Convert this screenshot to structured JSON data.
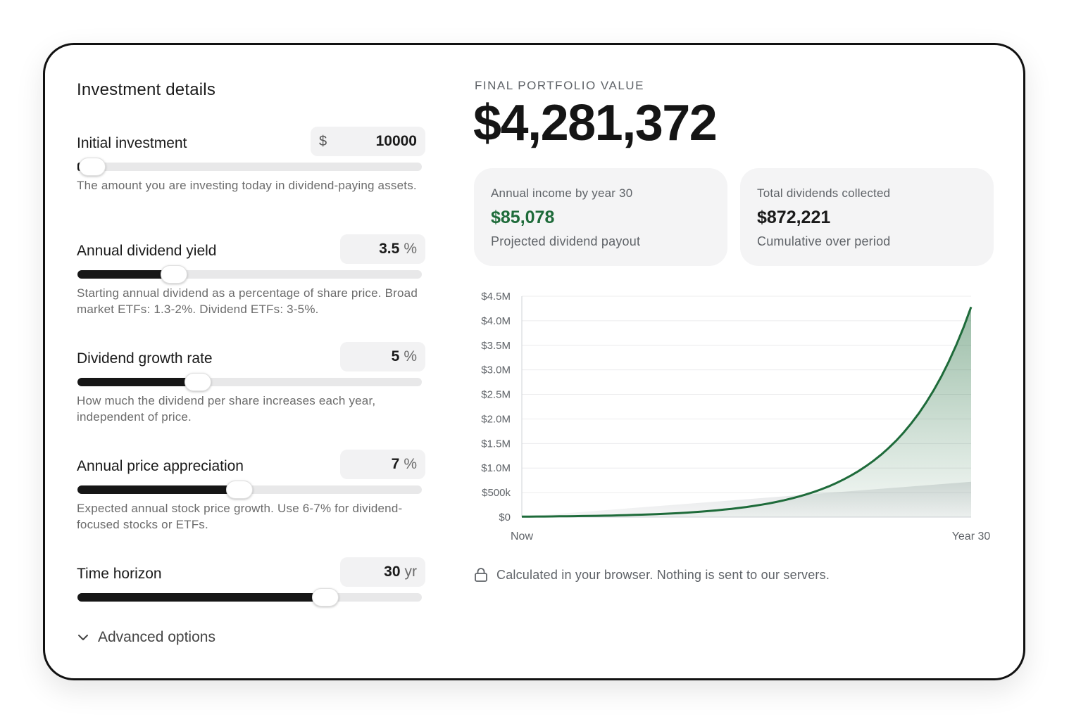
{
  "inputs": {
    "title": "Investment details",
    "fields": [
      {
        "label": "Initial investment",
        "prefix": "$",
        "value": "10000",
        "unit": "",
        "level": 0.0,
        "help": "The amount you are investing today in dividend-paying assets."
      },
      {
        "label": "Annual dividend yield",
        "prefix": "",
        "value": "3.5",
        "unit": "%",
        "level": 0.28,
        "help": "Starting annual dividend as a percentage of share price. Broad market ETFs: 1.3-2%. Dividend ETFs: 3-5%."
      },
      {
        "label": "Dividend growth rate",
        "prefix": "",
        "value": "5",
        "unit": "%",
        "level": 0.35,
        "help": "How much the dividend per share increases each year, independent of price."
      },
      {
        "label": "Annual price appreciation",
        "prefix": "",
        "value": "7",
        "unit": "%",
        "level": 0.47,
        "help": "Expected annual stock price growth. Use 6-7% for dividend-focused stocks or ETFs."
      },
      {
        "label": "Time horizon",
        "prefix": "",
        "value": "30",
        "unit": "yr",
        "level": 0.72,
        "help": ""
      }
    ],
    "advanced_label": "Advanced options"
  },
  "results": {
    "final_label": "FINAL PORTFOLIO VALUE",
    "final_value": "$4,281,372",
    "stats": [
      {
        "label": "Annual income by year 30",
        "value": "$85,078",
        "sub": "Projected dividend payout",
        "value_color": "#1e6b3a"
      },
      {
        "label": "Total dividends collected",
        "value": "$872,221",
        "sub": "Cumulative over period",
        "value_color": "#1a1a1a"
      }
    ],
    "note": "Calculated in your browser. Nothing is sent to our servers."
  },
  "chart_data": {
    "type": "area",
    "x_labels": [
      "Now",
      "Year 30"
    ],
    "x": [
      0,
      30
    ],
    "y_ticks": [
      "$0",
      "$500k",
      "$1.0M",
      "$1.5M",
      "$2.0M",
      "$2.5M",
      "$3.0M",
      "$3.5M",
      "$4.0M",
      "$4.5M"
    ],
    "ylim": [
      0,
      4500000
    ],
    "grid": true,
    "series": [
      {
        "color": "#1e6b3a",
        "start": 10000,
        "end": 4281372
      },
      {
        "color": "#c9cccf",
        "start": 10000,
        "end": 720000
      }
    ]
  },
  "colors": {
    "accent": "#1e6b3a",
    "slider_fill": "#161616",
    "slider_track": "#e8e8e9"
  },
  "icons": {
    "lock": "lock-icon",
    "chevron": "chevron-down-icon"
  }
}
